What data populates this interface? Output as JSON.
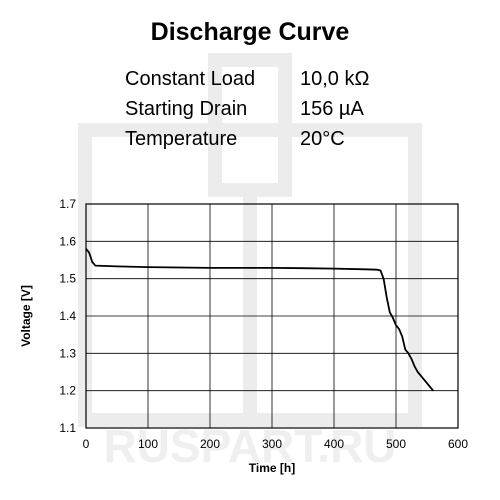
{
  "header": {
    "title": "Discharge Curve",
    "specs": [
      {
        "label": "Constant Load",
        "value": "10,0 kΩ"
      },
      {
        "label": "Starting Drain",
        "value": "156 µA"
      },
      {
        "label": "Temperature",
        "value": "20°C"
      }
    ]
  },
  "watermark_text": "RUSPART.RU",
  "chart_data": {
    "type": "line",
    "title": "Discharge Curve",
    "xlabel": "Time [h]",
    "ylabel": "Voltage [V]",
    "xlim": [
      0,
      600
    ],
    "ylim": [
      1.1,
      1.7
    ],
    "xticks": [
      0,
      100,
      200,
      300,
      400,
      500,
      600
    ],
    "yticks": [
      1.1,
      1.2,
      1.3,
      1.4,
      1.5,
      1.6,
      1.7
    ],
    "xtick_labels": [
      "0",
      "100",
      "200",
      "300",
      "400",
      "500",
      "600"
    ],
    "ytick_labels": [
      "1.1",
      "1.2",
      "1.3",
      "1.4",
      "1.5",
      "1.6",
      "1.7"
    ],
    "grid": true,
    "line_color": "#000000",
    "series": [
      {
        "x": [
          0,
          5,
          10,
          15,
          50,
          100,
          150,
          200,
          250,
          300,
          350,
          400,
          450,
          470,
          475,
          480,
          485,
          490,
          495,
          500,
          505,
          510,
          515,
          520,
          525,
          530,
          535,
          540,
          550,
          560
        ],
        "y": [
          1.58,
          1.57,
          1.545,
          1.535,
          1.533,
          1.531,
          1.53,
          1.529,
          1.529,
          1.529,
          1.528,
          1.527,
          1.525,
          1.524,
          1.522,
          1.5,
          1.45,
          1.41,
          1.395,
          1.375,
          1.365,
          1.345,
          1.31,
          1.3,
          1.285,
          1.265,
          1.25,
          1.24,
          1.22,
          1.2
        ]
      }
    ]
  }
}
